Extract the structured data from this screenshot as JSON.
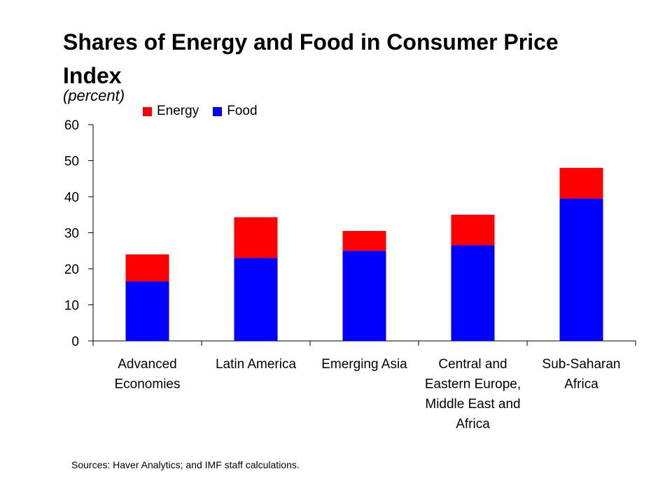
{
  "chart_data": {
    "type": "bar",
    "stacked": true,
    "title": "Shares of Energy and Food in Consumer Price Index",
    "subtitle": "(percent)",
    "categories": [
      [
        "Advanced",
        "Economies"
      ],
      [
        "Latin America"
      ],
      [
        "Emerging Asia"
      ],
      [
        "Central and",
        "Eastern Europe,",
        "Middle East and",
        "Africa"
      ],
      [
        "Sub-Saharan",
        "Africa"
      ]
    ],
    "series": [
      {
        "name": "Food",
        "color": "#0000ff",
        "values": [
          16.5,
          23,
          25,
          26.5,
          39.5
        ]
      },
      {
        "name": "Energy",
        "color": "#ff0000",
        "values": [
          7.5,
          11.3,
          5.5,
          8.5,
          8.5
        ]
      }
    ],
    "legend": [
      {
        "name": "Energy",
        "color": "#ff0000"
      },
      {
        "name": "Food",
        "color": "#0000ff"
      }
    ],
    "legend_position": "top-left",
    "ylim": [
      0,
      60
    ],
    "yticks": [
      0,
      10,
      20,
      30,
      40,
      50,
      60
    ],
    "xlabel": "",
    "ylabel": "",
    "grid": false
  },
  "source": "Sources: Haver Analytics; and IMF staff calculations."
}
